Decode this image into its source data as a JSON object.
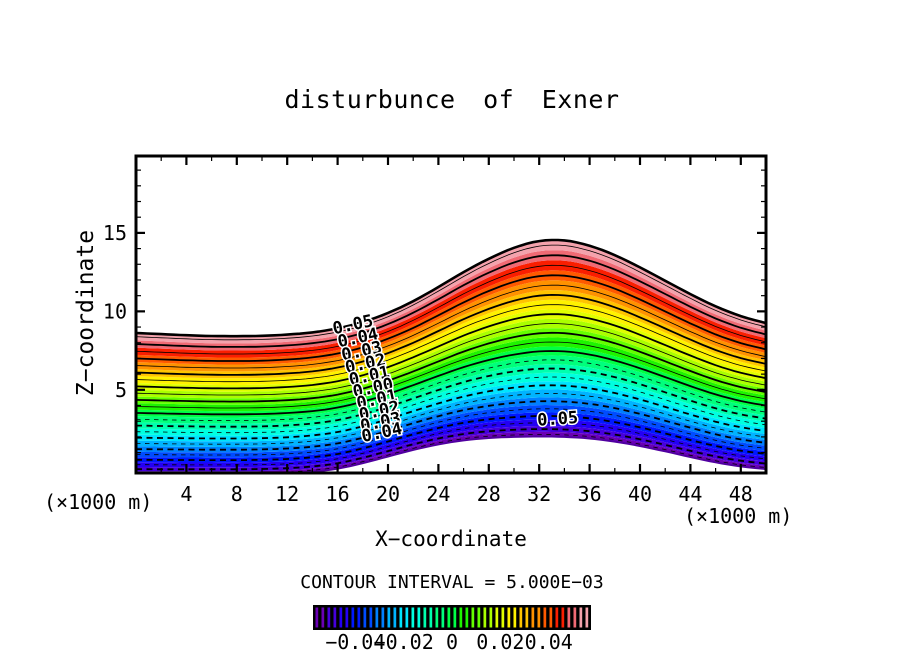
{
  "title": "disturbunce of Exner",
  "axes": {
    "x": {
      "title": "X−coordinate",
      "unit_left": "(×1000 m)",
      "unit_right": "(×1000 m)",
      "tick_labels": [
        4,
        8,
        12,
        16,
        20,
        24,
        28,
        32,
        36,
        40,
        44,
        48
      ],
      "minor_tick_step": 2,
      "range": [
        0,
        50
      ]
    },
    "z": {
      "title": "Z−coordinate",
      "tick_labels": [
        5,
        10,
        15
      ],
      "minor_tick_step": 1,
      "range": [
        0,
        20
      ]
    }
  },
  "footer": {
    "contour_interval_text": "CONTOUR INTERVAL = 5.000E−03"
  },
  "colorbar": {
    "background": "#000000",
    "value_range": [
      -0.0575,
      0.0575
    ],
    "stripe_count": 46,
    "labels": [
      {
        "text": "−0.04",
        "value": -0.04
      },
      {
        "text": "−0.02",
        "value": -0.02
      },
      {
        "text": "0",
        "value": 0
      },
      {
        "text": "0.02",
        "value": 0.02
      },
      {
        "text": "0.04",
        "value": 0.04
      }
    ]
  },
  "chart_data": {
    "type": "filled_contour",
    "title": "disturbunce of Exner",
    "xlabel": "X−coordinate (×1000 m)",
    "ylabel": "Z−coordinate (×1000 m)",
    "x_range": [
      0,
      50
    ],
    "z_range": [
      0,
      20
    ],
    "contour_interval": 0.005,
    "levels": {
      "min": -0.055,
      "max": 0.055,
      "step": 0.005,
      "thick_every": 0.01,
      "positive_style": "solid",
      "negative_style": "dashed"
    },
    "value_at_top_boundary": 0.0575,
    "value_at_bottom_boundary": -0.0575,
    "spacing_power": 1.2,
    "x_nodes": [
      0,
      2,
      4,
      6,
      8,
      10,
      12,
      14,
      16,
      18,
      20,
      22,
      24,
      26,
      28,
      30,
      32,
      34,
      36,
      38,
      40,
      42,
      44,
      46,
      48,
      50
    ],
    "top_boundary_z": [
      8.62,
      8.55,
      8.48,
      8.43,
      8.42,
      8.44,
      8.52,
      8.66,
      8.92,
      9.32,
      9.9,
      10.65,
      11.55,
      12.5,
      13.35,
      14.05,
      14.48,
      14.52,
      14.18,
      13.58,
      12.8,
      11.95,
      11.1,
      10.32,
      9.7,
      9.25
    ],
    "terrain_z": [
      -0.4,
      -0.4,
      -0.4,
      -0.4,
      -0.4,
      -0.38,
      -0.33,
      -0.22,
      -0.02,
      0.33,
      0.75,
      1.17,
      1.52,
      1.78,
      1.93,
      2.0,
      2.03,
      2.0,
      1.9,
      1.7,
      1.42,
      1.08,
      0.72,
      0.38,
      0.12,
      -0.05
    ],
    "palette_low_to_high": [
      "#6A00B4",
      "#4600DC",
      "#2400F4",
      "#0018FF",
      "#004CFF",
      "#0080FF",
      "#00B4FF",
      "#00E4FF",
      "#00FFE0",
      "#00FFAE",
      "#00FF7C",
      "#00FF46",
      "#1EF400",
      "#64FF00",
      "#AAFF00",
      "#E0FF00",
      "#FFF200",
      "#FFC400",
      "#FF9200",
      "#FF5A00",
      "#FA1E00",
      "#F06A74",
      "#F4A2AC"
    ],
    "contour_labels": [
      {
        "text": "0.05",
        "value": 0.05,
        "x": 17.3,
        "rotation": -12
      },
      {
        "text": "0.04",
        "value": 0.04,
        "x": 17.7,
        "rotation": -12
      },
      {
        "text": "0.03",
        "value": 0.03,
        "x": 18.0,
        "rotation": -12
      },
      {
        "text": "0.02",
        "value": 0.02,
        "x": 18.3,
        "rotation": -12
      },
      {
        "text": "0.01",
        "value": 0.01,
        "x": 18.6,
        "rotation": -12
      },
      {
        "text": "0.00",
        "value": 0.0,
        "x": 18.9,
        "rotation": -12
      },
      {
        "text": "0.01",
        "value": -0.01,
        "x": 19.2,
        "rotation": -12
      },
      {
        "text": "0.02",
        "value": -0.02,
        "x": 19.4,
        "rotation": -12
      },
      {
        "text": "0.03",
        "value": -0.03,
        "x": 19.5,
        "rotation": -12
      },
      {
        "text": "0.04",
        "value": -0.04,
        "x": 19.6,
        "rotation": -12
      },
      {
        "text": "0.05",
        "value": -0.05,
        "x": 33.5,
        "rotation": -4
      }
    ]
  }
}
